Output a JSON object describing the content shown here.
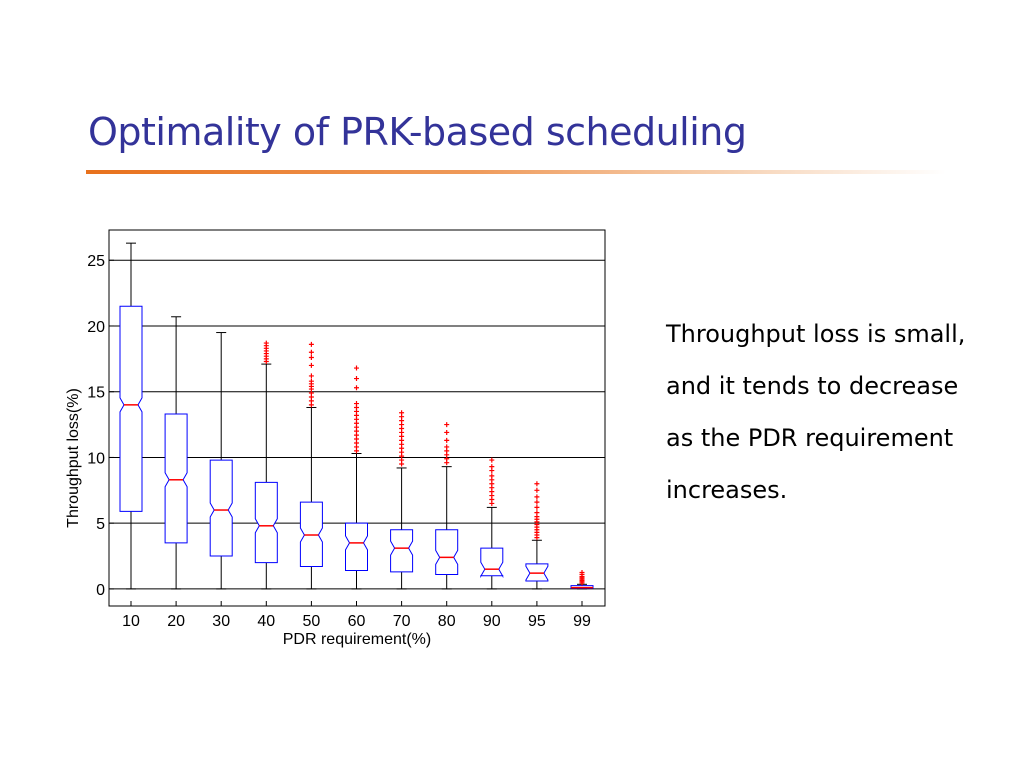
{
  "slide": {
    "title": "Optimality of PRK-based scheduling",
    "caption_lines": [
      "Throughput loss is small,",
      "and it tends to decrease",
      "as the PDR requirement",
      "increases."
    ]
  },
  "chart_data": {
    "type": "boxplot",
    "xlabel": "PDR requirement(%)",
    "ylabel": "Throughput loss(%)",
    "categories": [
      "10",
      "20",
      "30",
      "40",
      "50",
      "60",
      "70",
      "80",
      "90",
      "95",
      "99"
    ],
    "ylim": [
      -1.3,
      27.3
    ],
    "yticks": [
      0,
      5,
      10,
      15,
      20,
      25
    ],
    "grid": "horizontal",
    "colors": {
      "box": "#0000ff",
      "median": "#ff0000",
      "outlier": "#ff0000",
      "whisker": "#000000"
    },
    "boxes": [
      {
        "category": "10",
        "whisker_low": 0,
        "q1": 5.9,
        "median": 14.0,
        "q3": 21.5,
        "whisker_high": 26.3,
        "outliers": []
      },
      {
        "category": "20",
        "whisker_low": 0,
        "q1": 3.5,
        "median": 8.3,
        "q3": 13.3,
        "whisker_high": 20.7,
        "outliers": []
      },
      {
        "category": "30",
        "whisker_low": 0,
        "q1": 2.5,
        "median": 6.0,
        "q3": 9.8,
        "whisker_high": 19.5,
        "outliers": []
      },
      {
        "category": "40",
        "whisker_low": 0,
        "q1": 2.0,
        "median": 4.8,
        "q3": 8.1,
        "whisker_high": 17.1,
        "outliers": [
          17.3,
          17.5,
          17.7,
          17.9,
          18.1,
          18.3,
          18.5,
          18.7
        ]
      },
      {
        "category": "50",
        "whisker_low": 0,
        "q1": 1.7,
        "median": 4.1,
        "q3": 6.6,
        "whisker_high": 13.8,
        "outliers": [
          14.0,
          14.3,
          14.6,
          14.9,
          15.2,
          15.4,
          15.6,
          15.8,
          16.2,
          17.0,
          17.6,
          18.0,
          18.6
        ]
      },
      {
        "category": "60",
        "whisker_low": 0,
        "q1": 1.4,
        "median": 3.5,
        "q3": 5.0,
        "whisker_high": 10.3,
        "outliers": [
          10.5,
          10.8,
          11.1,
          11.4,
          11.7,
          12.0,
          12.3,
          12.6,
          12.9,
          13.2,
          13.5,
          13.8,
          14.1,
          15.3,
          16.0,
          16.8
        ]
      },
      {
        "category": "70",
        "whisker_low": 0,
        "q1": 1.3,
        "median": 3.1,
        "q3": 4.5,
        "whisker_high": 9.2,
        "outliers": [
          9.5,
          9.8,
          10.1,
          10.4,
          10.7,
          11.0,
          11.3,
          11.6,
          11.9,
          12.2,
          12.5,
          12.8,
          13.1,
          13.4
        ]
      },
      {
        "category": "80",
        "whisker_low": 0,
        "q1": 1.1,
        "median": 2.4,
        "q3": 4.5,
        "whisker_high": 9.3,
        "outliers": [
          9.6,
          9.9,
          10.2,
          10.5,
          10.8,
          11.3,
          11.9,
          12.5
        ]
      },
      {
        "category": "90",
        "whisker_low": 0,
        "q1": 1.0,
        "median": 1.5,
        "q3": 3.1,
        "whisker_high": 6.2,
        "outliers": [
          6.5,
          6.8,
          7.1,
          7.4,
          7.7,
          8.0,
          8.3,
          8.6,
          9.0,
          9.3,
          9.8
        ]
      },
      {
        "category": "95",
        "whisker_low": 0,
        "q1": 0.6,
        "median": 1.2,
        "q3": 1.9,
        "whisker_high": 3.7,
        "outliers": [
          3.9,
          4.1,
          4.3,
          4.5,
          4.7,
          4.9,
          5.1,
          5.3,
          5.5,
          5.8,
          6.2,
          6.6,
          7.0,
          7.5,
          8.0
        ]
      },
      {
        "category": "99",
        "whisker_low": 0,
        "q1": 0.05,
        "median": 0.1,
        "q3": 0.25,
        "whisker_high": 0.35,
        "outliers": [
          0.45,
          0.55,
          0.65,
          0.75,
          0.85,
          0.95,
          1.1,
          1.25
        ]
      }
    ]
  }
}
